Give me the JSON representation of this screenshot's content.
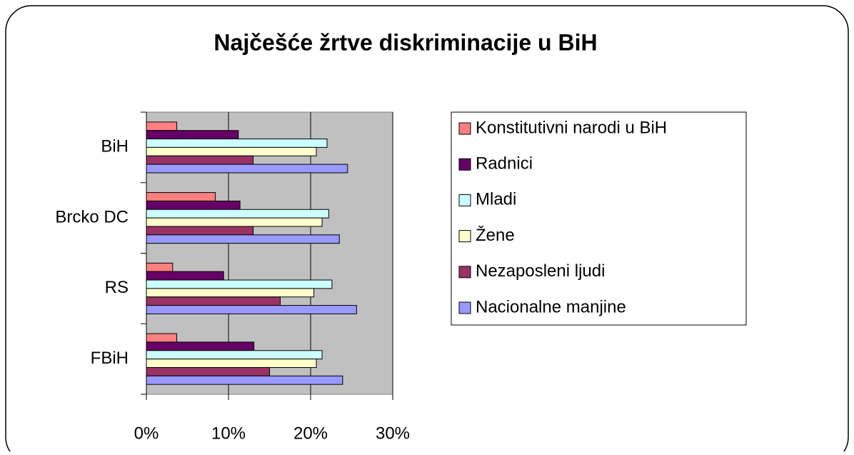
{
  "chart_data": {
    "type": "barh",
    "title": "Najčešće žrtve diskriminacije u BiH",
    "categories": [
      "BiH",
      "Brcko DC",
      "RS",
      "FBiH"
    ],
    "series": [
      {
        "name": "Konstitutivni narodi u BiH",
        "color": "#ff8080",
        "values": [
          3.7,
          8.4,
          3.2,
          3.7
        ]
      },
      {
        "name": "Radnici",
        "color": "#660066",
        "values": [
          11.2,
          11.4,
          9.4,
          13.1
        ]
      },
      {
        "name": "Mladi",
        "color": "#ccffff",
        "values": [
          22.0,
          22.2,
          22.6,
          21.4
        ]
      },
      {
        "name": "Žene",
        "color": "#ffffcc",
        "values": [
          20.7,
          21.4,
          20.4,
          20.7
        ]
      },
      {
        "name": "Nezaposleni ljudi",
        "color": "#993366",
        "values": [
          13.0,
          13.0,
          16.3,
          15.0
        ]
      },
      {
        "name": "Nacionalne manjine",
        "color": "#9999ff",
        "values": [
          24.5,
          23.5,
          25.6,
          23.9
        ]
      }
    ],
    "xlim": [
      0,
      30
    ],
    "xticks": [
      {
        "value": 0,
        "label": "0%"
      },
      {
        "value": 10,
        "label": "10%"
      },
      {
        "value": 20,
        "label": "20%"
      },
      {
        "value": 30,
        "label": "30%"
      }
    ],
    "grid": true,
    "legend": "right"
  }
}
